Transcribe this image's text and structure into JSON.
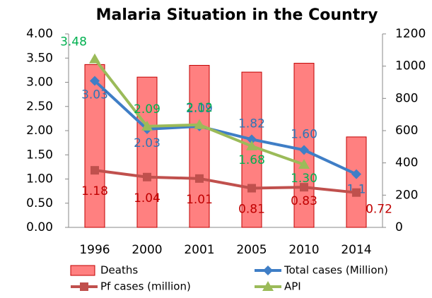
{
  "chart_data": {
    "type": "bar-line",
    "title": "Malaria Situation in the Country",
    "categories": [
      "1996",
      "2000",
      "2001",
      "2005",
      "2010",
      "2014"
    ],
    "series": [
      {
        "name": "Deaths",
        "type": "bar",
        "axis": "y2",
        "color": "#ff8080",
        "values": [
          1010,
          932,
          1005,
          963,
          1018,
          561
        ]
      },
      {
        "name": "Total cases (Million)",
        "type": "line",
        "marker": "diamond",
        "color": "#3f7ec6",
        "label_color": "#2e75b6",
        "values": [
          3.03,
          2.03,
          2.09,
          1.82,
          1.6,
          1.1
        ],
        "value_labels": [
          "3.03",
          "2.03",
          "2.09",
          "1.82",
          "1.60",
          "1.1"
        ]
      },
      {
        "name": "Pf cases (million)",
        "type": "line",
        "marker": "square",
        "color": "#c0504d",
        "label_color": "#c00000",
        "values": [
          1.18,
          1.04,
          1.01,
          0.81,
          0.83,
          0.72
        ],
        "value_labels": [
          "1.18",
          "1.04",
          "1.01",
          "0.81",
          "0.83",
          "0.72"
        ]
      },
      {
        "name": "API",
        "type": "line",
        "marker": "triangle",
        "color": "#9bbb59",
        "label_color": "#00b050",
        "values": [
          3.48,
          2.09,
          2.12,
          1.68,
          1.3,
          null
        ],
        "value_labels": [
          "3.48",
          "2.09",
          "2.12",
          "1.68",
          "1.30",
          null
        ]
      }
    ],
    "ylim": [
      0,
      4
    ],
    "yticks": [
      {
        "value": 0,
        "label": "0.00"
      },
      {
        "value": 0.5,
        "label": "0.50"
      },
      {
        "value": 1,
        "label": "1.00"
      },
      {
        "value": 1.5,
        "label": "1.50"
      },
      {
        "value": 2,
        "label": "2.00"
      },
      {
        "value": 2.5,
        "label": "2.50"
      },
      {
        "value": 3,
        "label": "3.00"
      },
      {
        "value": 3.5,
        "label": "3.50"
      },
      {
        "value": 4,
        "label": "4.00"
      }
    ],
    "y2lim": [
      0,
      1200
    ],
    "y2ticks": [
      0,
      200,
      400,
      600,
      800,
      1000,
      1200
    ],
    "grid": false,
    "legend": "bottom"
  }
}
